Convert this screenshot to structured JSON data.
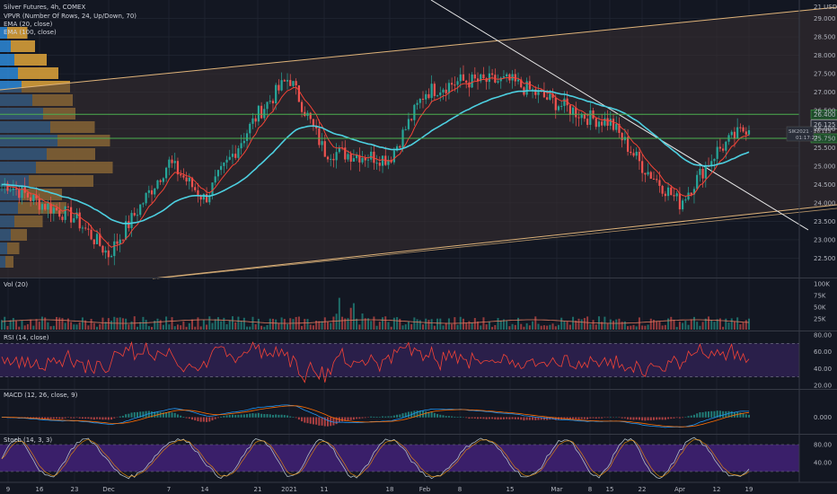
{
  "legend": {
    "title": "Silver Futures, 4h, COMEX",
    "vpvr": "VPVR (Number Of Rows, 24, Up/Down, 70)",
    "ema20": "EMA (20, close)",
    "ema100": "EMA (100, close)",
    "vol": "Vol (20)",
    "rsi": "RSI (14, close)",
    "macd": "MACD (12, 26, close, 9)",
    "stoch": "Stoch (14, 3, 3)"
  },
  "price_axis": {
    "unit_label": "21 USD",
    "ticks": [
      "29.000",
      "28.500",
      "28.000",
      "27.500",
      "27.000",
      "26.500",
      "26.000",
      "25.500",
      "25.000",
      "24.500",
      "24.000",
      "23.500",
      "23.000",
      "22.500"
    ],
    "badges": [
      {
        "text": "26.400",
        "color": "#4caf50"
      },
      {
        "text": "26.125",
        "color": "#d1d4dc"
      },
      {
        "text": "25.750",
        "color": "#4caf50"
      }
    ],
    "last_price_tag": "SIK2021 · 26.125",
    "countdown": "01:17:22"
  },
  "volume_axis": {
    "ticks": [
      "100K",
      "75K",
      "50K",
      "25K"
    ]
  },
  "rsi_axis": {
    "ticks": [
      "80.00",
      "60.00",
      "40.00",
      "20.00"
    ]
  },
  "macd_axis": {
    "ticks": [
      "0.000"
    ]
  },
  "stoch_axis": {
    "ticks": [
      "80.00",
      "40.00"
    ]
  },
  "time_axis": {
    "ticks": [
      "9",
      "16",
      "23",
      "Dec",
      "7",
      "14",
      "21",
      "2021",
      "11",
      "18",
      "Feb",
      "8",
      "15",
      "Mar",
      "8",
      "15",
      "22",
      "Apr",
      "12",
      "19"
    ]
  },
  "colors": {
    "background": "#131722",
    "grid": "#252a36",
    "up": "#26a69a",
    "down": "#ef5350",
    "ema20": "#f44336",
    "ema100": "#4dd0e1",
    "channel": "#e0b47a",
    "trendline": "#e8e8e8",
    "horizontal": "#4caf50",
    "vpvr_up": "#2e8ad8",
    "vpvr_down": "#e0a43a",
    "rsi_band": "#2a1f4a",
    "stoch_band": "#3a1f6a",
    "rsi_line": "#f44336",
    "macd_line": "#2196f3",
    "signal_line": "#ff6d00",
    "stoch_k": "#b0bec5"
  },
  "chart_data": [
    {
      "type": "candlestick",
      "title": "Silver Futures, 4h, COMEX",
      "ylim": [
        22.0,
        29.5
      ],
      "overlays": [
        "EMA (20, close)",
        "EMA (100, close)",
        "VPVR (Number Of Rows, 24, Up/Down, 70)"
      ],
      "horizontal_levels": [
        26.4,
        25.75
      ],
      "last_price": 26.125,
      "anchors": [
        {
          "x": "9",
          "y": 24.5
        },
        {
          "x": "16",
          "y": 24.0
        },
        {
          "x": "23",
          "y": 23.6
        },
        {
          "x": "Dec",
          "y": 22.6
        },
        {
          "x": "7",
          "y": 25.1
        },
        {
          "x": "14",
          "y": 24.1
        },
        {
          "x": "21",
          "y": 26.4
        },
        {
          "x": "2021",
          "y": 27.4
        },
        {
          "x": "11",
          "y": 25.4
        },
        {
          "x": "18",
          "y": 25.2
        },
        {
          "x": "Feb",
          "y": 27.0
        },
        {
          "x": "8",
          "y": 27.3
        },
        {
          "x": "15",
          "y": 27.3
        },
        {
          "x": "Mar",
          "y": 26.7
        },
        {
          "x": "8",
          "y": 26.3
        },
        {
          "x": "15",
          "y": 26.2
        },
        {
          "x": "22",
          "y": 25.0
        },
        {
          "x": "Apr",
          "y": 24.0
        },
        {
          "x": "12",
          "y": 25.4
        },
        {
          "x": "19",
          "y": 26.1
        }
      ]
    },
    {
      "type": "bar",
      "name": "Vol (20)",
      "ylim": [
        0,
        100000
      ]
    },
    {
      "type": "line",
      "name": "RSI (14, close)",
      "ylim": [
        20,
        80
      ],
      "bands": [
        30,
        70
      ]
    },
    {
      "type": "line",
      "name": "MACD (12, 26, close, 9)"
    },
    {
      "type": "line",
      "name": "Stoch (14, 3, 3)",
      "ylim": [
        0,
        100
      ],
      "bands": [
        20,
        80
      ]
    }
  ]
}
